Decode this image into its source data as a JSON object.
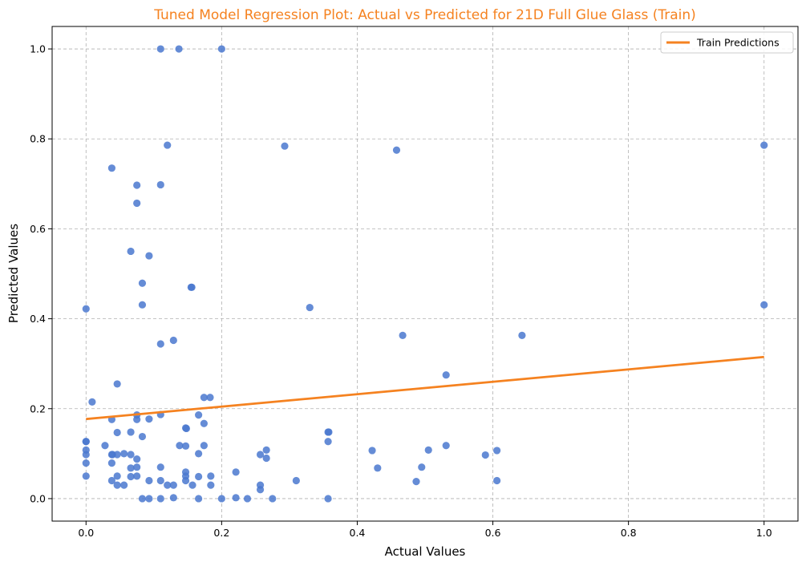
{
  "colors": {
    "title": "#f58220",
    "points": "#4a78cf",
    "line": "#f58220",
    "grid": "#b0b0b0"
  },
  "chart_data": {
    "type": "scatter",
    "title": "Tuned Model Regression Plot: Actual vs Predicted for 21D Full Glue Glass (Train)",
    "xlabel": "Actual Values",
    "ylabel": "Predicted Values",
    "xlim": [
      -0.05,
      1.05
    ],
    "ylim": [
      -0.05,
      1.05
    ],
    "xticks": [
      0.0,
      0.2,
      0.4,
      0.6,
      0.8,
      1.0
    ],
    "yticks": [
      0.0,
      0.2,
      0.4,
      0.6,
      0.8,
      1.0
    ],
    "xtick_labels": [
      "0.0",
      "0.2",
      "0.4",
      "0.6",
      "0.8",
      "1.0"
    ],
    "ytick_labels": [
      "0.0",
      "0.2",
      "0.4",
      "0.6",
      "0.8",
      "1.0"
    ],
    "grid": true,
    "legend": {
      "position": "top-right",
      "entries": [
        "Train Predictions"
      ]
    },
    "series": [
      {
        "type": "scatter",
        "points": [
          [
            0.11,
            1.0
          ],
          [
            0.137,
            1.0
          ],
          [
            0.2,
            1.0
          ],
          [
            0.12,
            0.786
          ],
          [
            0.293,
            0.784
          ],
          [
            0.458,
            0.775
          ],
          [
            1.0,
            0.786
          ],
          [
            0.038,
            0.735
          ],
          [
            0.075,
            0.697
          ],
          [
            0.11,
            0.698
          ],
          [
            0.075,
            0.657
          ],
          [
            0.066,
            0.55
          ],
          [
            0.093,
            0.54
          ],
          [
            0.083,
            0.479
          ],
          [
            0.155,
            0.47
          ],
          [
            0.156,
            0.47
          ],
          [
            0.0,
            0.422
          ],
          [
            0.083,
            0.431
          ],
          [
            0.33,
            0.425
          ],
          [
            1.0,
            0.431
          ],
          [
            0.467,
            0.363
          ],
          [
            0.643,
            0.363
          ],
          [
            0.11,
            0.344
          ],
          [
            0.129,
            0.352
          ],
          [
            0.531,
            0.275
          ],
          [
            0.046,
            0.255
          ],
          [
            0.174,
            0.225
          ],
          [
            0.183,
            0.225
          ],
          [
            0.009,
            0.215
          ],
          [
            0.11,
            0.187
          ],
          [
            0.075,
            0.186
          ],
          [
            0.166,
            0.186
          ],
          [
            0.038,
            0.176
          ],
          [
            0.075,
            0.176
          ],
          [
            0.093,
            0.177
          ],
          [
            0.174,
            0.167
          ],
          [
            0.147,
            0.157
          ],
          [
            0.148,
            0.156
          ],
          [
            0.357,
            0.148
          ],
          [
            0.358,
            0.148
          ],
          [
            0.066,
            0.148
          ],
          [
            0.046,
            0.147
          ],
          [
            0.083,
            0.138
          ],
          [
            0.0,
            0.127
          ],
          [
            0.0,
            0.127
          ],
          [
            0.357,
            0.127
          ],
          [
            0.028,
            0.118
          ],
          [
            0.138,
            0.118
          ],
          [
            0.147,
            0.117
          ],
          [
            0.174,
            0.118
          ],
          [
            0.531,
            0.118
          ],
          [
            0.0,
            0.108
          ],
          [
            0.266,
            0.108
          ],
          [
            0.422,
            0.107
          ],
          [
            0.505,
            0.108
          ],
          [
            0.606,
            0.107
          ],
          [
            0.0,
            0.098
          ],
          [
            0.038,
            0.098
          ],
          [
            0.039,
            0.098
          ],
          [
            0.046,
            0.098
          ],
          [
            0.056,
            0.1
          ],
          [
            0.066,
            0.098
          ],
          [
            0.166,
            0.1
          ],
          [
            0.257,
            0.098
          ],
          [
            0.589,
            0.097
          ],
          [
            0.075,
            0.088
          ],
          [
            0.266,
            0.09
          ],
          [
            0.0,
            0.079
          ],
          [
            0.038,
            0.079
          ],
          [
            0.066,
            0.068
          ],
          [
            0.075,
            0.07
          ],
          [
            0.11,
            0.07
          ],
          [
            0.43,
            0.068
          ],
          [
            0.495,
            0.07
          ],
          [
            0.147,
            0.059
          ],
          [
            0.221,
            0.059
          ],
          [
            0.0,
            0.05
          ],
          [
            0.046,
            0.05
          ],
          [
            0.066,
            0.049
          ],
          [
            0.075,
            0.05
          ],
          [
            0.147,
            0.05
          ],
          [
            0.166,
            0.049
          ],
          [
            0.184,
            0.05
          ],
          [
            0.038,
            0.04
          ],
          [
            0.093,
            0.04
          ],
          [
            0.11,
            0.04
          ],
          [
            0.147,
            0.04
          ],
          [
            0.31,
            0.04
          ],
          [
            0.487,
            0.038
          ],
          [
            0.606,
            0.04
          ],
          [
            0.046,
            0.03
          ],
          [
            0.056,
            0.03
          ],
          [
            0.12,
            0.03
          ],
          [
            0.129,
            0.03
          ],
          [
            0.157,
            0.03
          ],
          [
            0.184,
            0.03
          ],
          [
            0.257,
            0.03
          ],
          [
            0.257,
            0.02
          ],
          [
            0.083,
            0.0
          ],
          [
            0.093,
            0.0
          ],
          [
            0.11,
            0.0
          ],
          [
            0.129,
            0.002
          ],
          [
            0.166,
            0.0
          ],
          [
            0.2,
            0.0
          ],
          [
            0.221,
            0.002
          ],
          [
            0.238,
            0.0
          ],
          [
            0.275,
            0.0
          ],
          [
            0.357,
            0.0
          ]
        ]
      },
      {
        "name": "Train Predictions",
        "type": "line",
        "points": [
          [
            0.0,
            0.177
          ],
          [
            1.0,
            0.315
          ]
        ]
      }
    ]
  }
}
